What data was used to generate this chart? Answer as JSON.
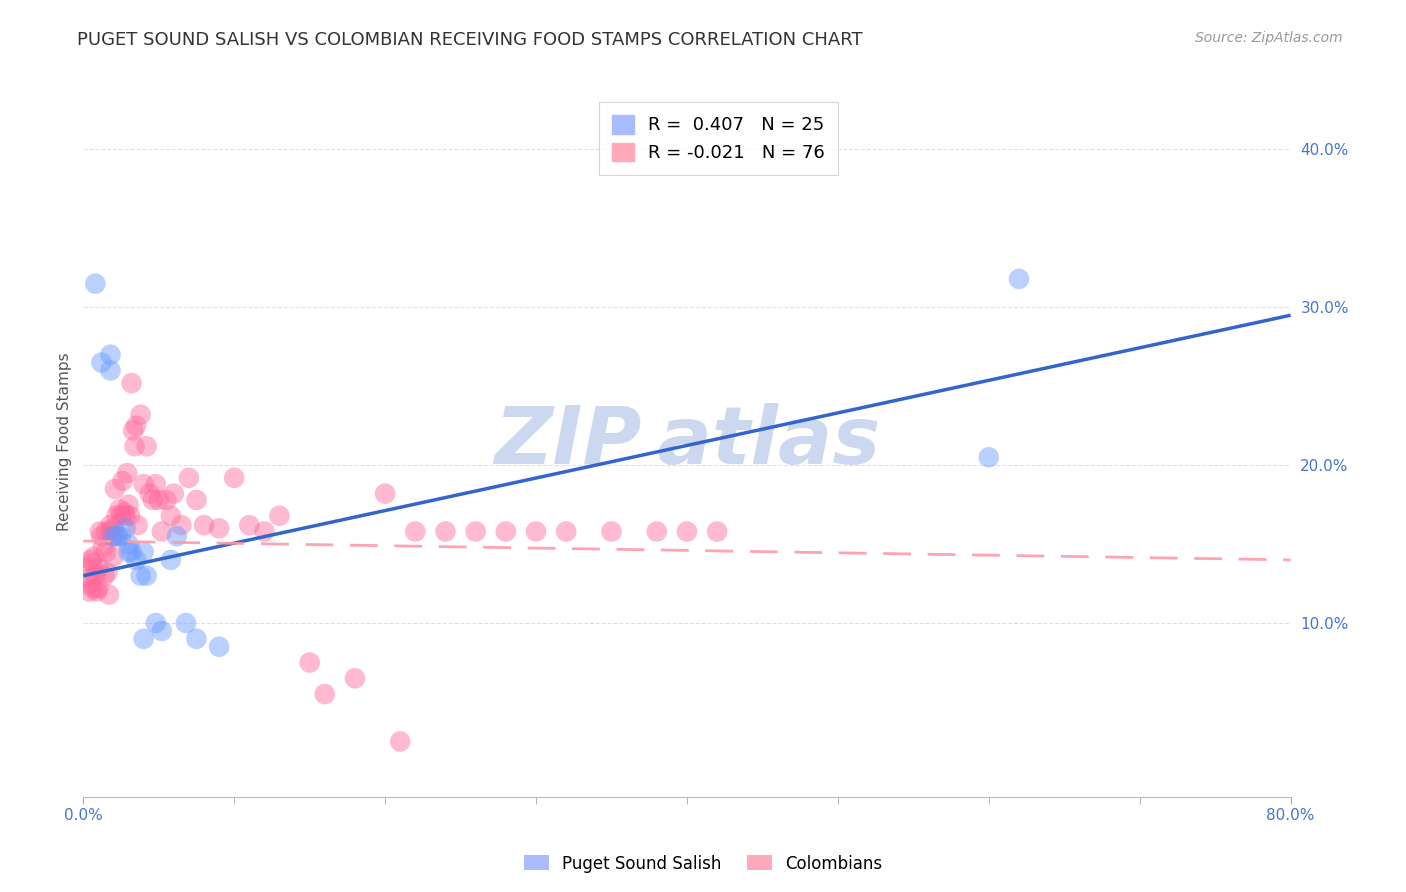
{
  "title": "PUGET SOUND SALISH VS COLOMBIAN RECEIVING FOOD STAMPS CORRELATION CHART",
  "source": "Source: ZipAtlas.com",
  "ylabel": "Receiving Food Stamps",
  "xlim": [
    0.0,
    0.8
  ],
  "ylim": [
    -0.01,
    0.44
  ],
  "legend_blue_label": "R =  0.407   N = 25",
  "legend_pink_label": "R = -0.021   N = 76",
  "blue_color": "#6699ff",
  "pink_color": "#ff6699",
  "trendline_blue_color": "#3366cc",
  "trendline_pink_color": "#ff99aa",
  "background_color": "#ffffff",
  "watermark_color": "#ccd8f0",
  "title_fontsize": 13,
  "source_fontsize": 10,
  "axis_label_fontsize": 11,
  "tick_fontsize": 11,
  "legend_fontsize": 13,
  "blue_scatter_x": [
    0.008,
    0.012,
    0.018,
    0.018,
    0.022,
    0.025,
    0.028,
    0.03,
    0.032,
    0.035,
    0.038,
    0.04,
    0.042,
    0.048,
    0.052,
    0.058,
    0.062,
    0.068,
    0.075,
    0.09,
    0.6,
    0.62,
    0.02,
    0.03,
    0.04
  ],
  "blue_scatter_y": [
    0.315,
    0.265,
    0.27,
    0.26,
    0.155,
    0.155,
    0.16,
    0.15,
    0.145,
    0.14,
    0.13,
    0.145,
    0.13,
    0.1,
    0.095,
    0.14,
    0.155,
    0.1,
    0.09,
    0.085,
    0.205,
    0.318,
    0.155,
    0.145,
    0.09
  ],
  "pink_scatter_x": [
    0.003,
    0.004,
    0.004,
    0.005,
    0.005,
    0.006,
    0.006,
    0.007,
    0.008,
    0.009,
    0.01,
    0.01,
    0.011,
    0.012,
    0.013,
    0.014,
    0.015,
    0.015,
    0.016,
    0.017,
    0.018,
    0.018,
    0.019,
    0.02,
    0.02,
    0.021,
    0.022,
    0.023,
    0.024,
    0.025,
    0.026,
    0.027,
    0.028,
    0.029,
    0.03,
    0.031,
    0.032,
    0.033,
    0.034,
    0.035,
    0.036,
    0.038,
    0.04,
    0.042,
    0.044,
    0.046,
    0.048,
    0.05,
    0.052,
    0.055,
    0.058,
    0.06,
    0.065,
    0.07,
    0.075,
    0.08,
    0.09,
    0.1,
    0.11,
    0.12,
    0.13,
    0.15,
    0.16,
    0.18,
    0.2,
    0.21,
    0.22,
    0.24,
    0.26,
    0.28,
    0.3,
    0.32,
    0.35,
    0.38,
    0.4,
    0.42
  ],
  "pink_scatter_y": [
    0.135,
    0.128,
    0.12,
    0.14,
    0.125,
    0.138,
    0.122,
    0.142,
    0.13,
    0.12,
    0.135,
    0.122,
    0.158,
    0.155,
    0.148,
    0.13,
    0.158,
    0.145,
    0.132,
    0.118,
    0.158,
    0.162,
    0.155,
    0.16,
    0.142,
    0.185,
    0.168,
    0.155,
    0.172,
    0.168,
    0.19,
    0.17,
    0.168,
    0.195,
    0.175,
    0.168,
    0.252,
    0.222,
    0.212,
    0.225,
    0.162,
    0.232,
    0.188,
    0.212,
    0.182,
    0.178,
    0.188,
    0.178,
    0.158,
    0.178,
    0.168,
    0.182,
    0.162,
    0.192,
    0.178,
    0.162,
    0.16,
    0.192,
    0.162,
    0.158,
    0.168,
    0.075,
    0.055,
    0.065,
    0.182,
    0.025,
    0.158,
    0.158,
    0.158,
    0.158,
    0.158,
    0.158,
    0.158,
    0.158,
    0.158,
    0.158
  ],
  "blue_trend_x": [
    0.0,
    0.8
  ],
  "blue_trend_y": [
    0.13,
    0.295
  ],
  "pink_trend_x": [
    0.0,
    0.8
  ],
  "pink_trend_y": [
    0.152,
    0.14
  ],
  "ytick_values": [
    0.1,
    0.2,
    0.3,
    0.4
  ],
  "ytick_labels": [
    "10.0%",
    "20.0%",
    "30.0%",
    "40.0%"
  ],
  "xtick_minor_positions": [
    0.1,
    0.2,
    0.3,
    0.4,
    0.5,
    0.6,
    0.7
  ]
}
